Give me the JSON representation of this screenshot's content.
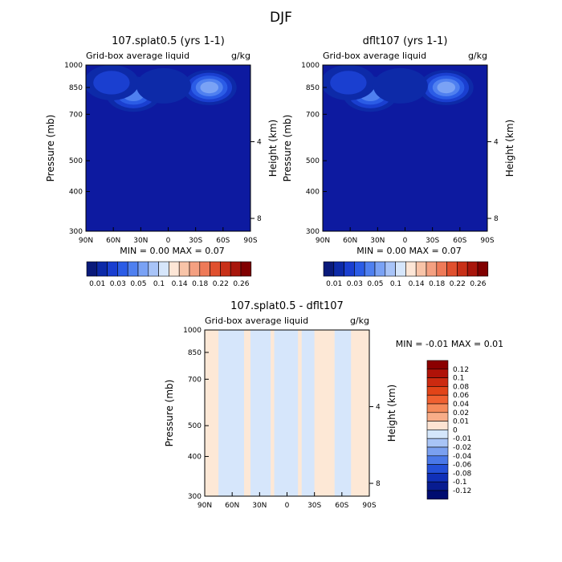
{
  "figure": {
    "title": "DJF"
  },
  "chart_data": [
    {
      "type": "heatmap",
      "title": "107.splat0.5 (yrs 1-1)",
      "subtitle_left": "Grid-box average liquid",
      "subtitle_right": "g/kg",
      "ylabel": "Pressure (mb)",
      "ylabel_right": "Height (km)",
      "x_ticks": [
        "90N",
        "60N",
        "30N",
        "0",
        "30S",
        "60S",
        "90S"
      ],
      "y_ticks": [
        "300",
        "400",
        "500",
        "700",
        "850",
        "1000"
      ],
      "y_right_ticks": [
        "8",
        "4"
      ],
      "ylim": [
        1000,
        300
      ],
      "stats": "MIN =    0.00   MAX =    0.07",
      "colorbar": {
        "labels": [
          "0.01",
          "0.03",
          "0.05",
          "0.1",
          "0.14",
          "0.18",
          "0.22",
          "0.26"
        ],
        "colors": [
          "#0a1a7a",
          "#0d2aa8",
          "#1a3fd0",
          "#2b5ce6",
          "#4f80f0",
          "#7aa2f5",
          "#a8c4f8",
          "#d6e6fb",
          "#fde6d6",
          "#f8c4a8",
          "#f4a081",
          "#ee7a58",
          "#e0502e",
          "#c83018",
          "#a8160c",
          "#800000"
        ]
      },
      "field": {
        "background": "#0d1aa0",
        "features": [
          {
            "lat": -45,
            "p": 850,
            "value": 0.07
          },
          {
            "lat": 38,
            "p": 810,
            "value": 0.05
          },
          {
            "lat": 62,
            "p": 880,
            "value": 0.03
          },
          {
            "lat": 5,
            "p": 860,
            "value": 0.02
          }
        ]
      }
    },
    {
      "type": "heatmap",
      "title": "dflt107 (yrs 1-1)",
      "subtitle_left": "Grid-box average liquid",
      "subtitle_right": "g/kg",
      "ylabel": "Pressure (mb)",
      "ylabel_right": "Height (km)",
      "x_ticks": [
        "90N",
        "60N",
        "30N",
        "0",
        "30S",
        "60S",
        "90S"
      ],
      "y_ticks": [
        "300",
        "400",
        "500",
        "700",
        "850",
        "1000"
      ],
      "y_right_ticks": [
        "8",
        "4"
      ],
      "ylim": [
        1000,
        300
      ],
      "stats": "MIN =    0.00   MAX =    0.07",
      "colorbar": {
        "labels": [
          "0.01",
          "0.03",
          "0.05",
          "0.1",
          "0.14",
          "0.18",
          "0.22",
          "0.26"
        ],
        "colors": [
          "#0a1a7a",
          "#0d2aa8",
          "#1a3fd0",
          "#2b5ce6",
          "#4f80f0",
          "#7aa2f5",
          "#a8c4f8",
          "#d6e6fb",
          "#fde6d6",
          "#f8c4a8",
          "#f4a081",
          "#ee7a58",
          "#e0502e",
          "#c83018",
          "#a8160c",
          "#800000"
        ]
      },
      "field": {
        "background": "#0d1aa0",
        "features": [
          {
            "lat": -45,
            "p": 850,
            "value": 0.07
          },
          {
            "lat": 38,
            "p": 810,
            "value": 0.05
          },
          {
            "lat": 62,
            "p": 880,
            "value": 0.03
          },
          {
            "lat": 5,
            "p": 860,
            "value": 0.02
          }
        ]
      }
    },
    {
      "type": "heatmap",
      "title": "107.splat0.5 - dflt107",
      "subtitle_left": "Grid-box average liquid",
      "subtitle_right": "g/kg",
      "ylabel": "Pressure (mb)",
      "ylabel_right": "Height (km)",
      "x_ticks": [
        "90N",
        "60N",
        "30N",
        "0",
        "30S",
        "60S",
        "90S"
      ],
      "y_ticks": [
        "300",
        "400",
        "500",
        "700",
        "850",
        "1000"
      ],
      "y_right_ticks": [
        "8",
        "4"
      ],
      "ylim": [
        1000,
        300
      ],
      "stats": "MIN =   -0.01    MAX =    0.01",
      "colorbar": {
        "labels": [
          "0.12",
          "0.1",
          "0.08",
          "0.06",
          "0.04",
          "0.02",
          "0.01",
          "0",
          "-0.01",
          "-0.02",
          "-0.04",
          "-0.06",
          "-0.08",
          "-0.1",
          "-0.12"
        ],
        "colors": [
          "#8b0000",
          "#b01208",
          "#cc2a10",
          "#e24418",
          "#f06030",
          "#f58a5a",
          "#f8ad88",
          "#fde3d2",
          "#d4e6fb",
          "#a8c4f6",
          "#7aa0f0",
          "#4a78e8",
          "#2450d8",
          "#1030b8",
          "#081c90",
          "#000c70"
        ]
      },
      "field": {
        "background": "#fde8d6",
        "negative_color": "#d6e6fb",
        "bands_lat": [
          75,
          47,
          40,
          18,
          14,
          -12,
          -16,
          -30,
          -52,
          -70,
          -84
        ]
      }
    }
  ]
}
